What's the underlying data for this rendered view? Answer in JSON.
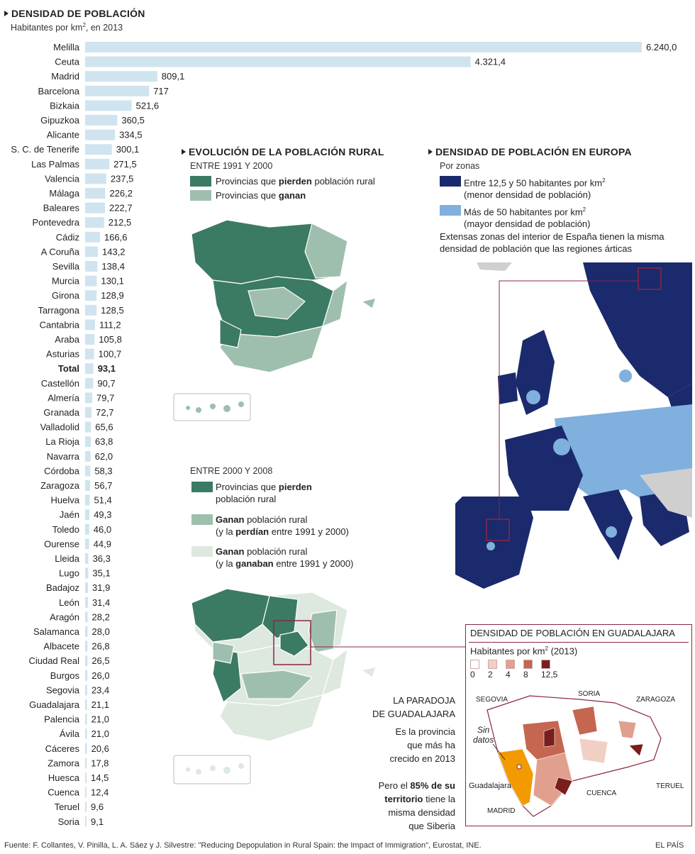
{
  "colors": {
    "bar": "#cfe4ee",
    "lose": "#3b7a63",
    "gain": "#9fbfae",
    "gain_prev": "#dde8df",
    "eu_low": "#1a2a6c",
    "eu_high": "#7fb0de",
    "accent": "#8b2740",
    "guada": "#f29a00",
    "guada_scale": [
      "#ffffff",
      "#f2cfc4",
      "#e1a08e",
      "#c56650",
      "#7a1d1d"
    ]
  },
  "chart_data": {
    "type": "bar",
    "orientation": "horizontal",
    "title": "DENSIDAD DE POBLACIÓN",
    "subtitle_pre": "Habitantes por km",
    "subtitle_sup": "2",
    "subtitle_post": ", en 2013",
    "highlight": "Total",
    "categories": [
      "Melilla",
      "Ceuta",
      "Madrid",
      "Barcelona",
      "Bizkaia",
      "Gipuzkoa",
      "Alicante",
      "S. C. de Tenerife",
      "Las Palmas",
      "Valencia",
      "Málaga",
      "Baleares",
      "Pontevedra",
      "Cádiz",
      "A Coruña",
      "Sevilla",
      "Murcia",
      "Girona",
      "Tarragona",
      "Cantabria",
      "Araba",
      "Asturias",
      "Total",
      "Castellón",
      "Almería",
      "Granada",
      "Valladolid",
      "La Rioja",
      "Navarra",
      "Córdoba",
      "Zaragoza",
      "Huelva",
      "Jaén",
      "Toledo",
      "Ourense",
      "Lleida",
      "Lugo",
      "Badajoz",
      "León",
      "Aragón",
      "Salamanca",
      "Albacete",
      "Ciudad Real",
      "Burgos",
      "Segovia",
      "Guadalajara",
      "Palencia",
      "Ávila",
      "Cáceres",
      "Zamora",
      "Huesca",
      "Cuenca",
      "Teruel",
      "Soria"
    ],
    "values": [
      6240.0,
      4321.4,
      809.1,
      717,
      521.6,
      360.5,
      334.5,
      300.1,
      271.5,
      237.5,
      226.2,
      222.7,
      212.5,
      166.6,
      143.2,
      138.4,
      130.1,
      128.9,
      128.5,
      111.2,
      105.8,
      100.7,
      93.1,
      90.7,
      79.7,
      72.7,
      65.6,
      63.8,
      62.0,
      58.3,
      56.7,
      51.4,
      49.3,
      46.0,
      44.9,
      36.3,
      35.1,
      31.9,
      31.4,
      28.2,
      28.0,
      26.8,
      26.5,
      26.0,
      23.4,
      21.1,
      21.0,
      21.0,
      20.6,
      17.8,
      14.5,
      12.4,
      9.6,
      9.1
    ],
    "value_labels": [
      "6.240,0",
      "4.321,4",
      "809,1",
      "717",
      "521,6",
      "360,5",
      "334,5",
      "300,1",
      "271,5",
      "237,5",
      "226,2",
      "222,7",
      "212,5",
      "166,6",
      "143,2",
      "138,4",
      "130,1",
      "128,9",
      "128,5",
      "111,2",
      "105,8",
      "100,7",
      "93,1",
      "90,7",
      "79,7",
      "72,7",
      "65,6",
      "63,8",
      "62,0",
      "58,3",
      "56,7",
      "51,4",
      "49,3",
      "46,0",
      "44,9",
      "36,3",
      "35,1",
      "31,9",
      "31,4",
      "28,2",
      "28,0",
      "26,8",
      "26,5",
      "26,0",
      "23,4",
      "21,1",
      "21,0",
      "21,0",
      "20,6",
      "17,8",
      "14,5",
      "12,4",
      "9,6",
      "9,1"
    ],
    "xlim": [
      0,
      6240
    ]
  },
  "rural": {
    "title": "EVOLUCIÓN DE LA POBLACIÓN RURAL",
    "period1": "ENTRE 1991 Y 2000",
    "p1_lose_pre": "Provincias que ",
    "p1_lose_bold": "pierden",
    "p1_lose_post": " población rural",
    "p1_gain_pre": "Provincias que ",
    "p1_gain_bold": "ganan",
    "period2": "ENTRE 2000 Y 2008",
    "p2_lose_pre": "Provincias que ",
    "p2_lose_bold": "pierden",
    "p2_lose_line2": "población rural",
    "p2_gain_bold": "Ganan",
    "p2_gain_post": " población rural",
    "p2_gain_l2_pre": "(y la ",
    "p2_gain_l2_bold": "perdían",
    "p2_gain_l2_post": " entre 1991 y 2000)",
    "p2_gain2_bold": "Ganan",
    "p2_gain2_post": " población rural",
    "p2_gain2_l2_pre": "(y la ",
    "p2_gain2_l2_bold": "ganaban",
    "p2_gain2_l2_post": " entre 1991 y 2000)"
  },
  "europe": {
    "title": "DENSIDAD DE POBLACIÓN EN EUROPA",
    "subtitle": "Por zonas",
    "low_l1_pre": "Entre 12,5 y 50 habitantes por km",
    "low_l1_sup": "2",
    "low_l2": "(menor densidad de población)",
    "high_l1_pre": "Más de 50 habitantes por km",
    "high_l1_sup": "2",
    "high_l2": "(mayor densidad de población)",
    "note_l1": "Extensas zonas del interior de España tienen la misma",
    "note_l2": "densidad de población que las regiones árticas"
  },
  "guadalajara": {
    "title": "DENSIDAD DE POBLACIÓN EN GUADALAJARA",
    "unit_pre": "Habitantes por km",
    "unit_sup": "2",
    "unit_post": " (2013)",
    "scale_labels": [
      "0",
      "2",
      "4",
      "8",
      "12,5"
    ],
    "neighbors": [
      "SEGOVIA",
      "SORIA",
      "ZARAGOZA",
      "TERUEL",
      "CUENCA",
      "MADRID"
    ],
    "city": "Guadalajara",
    "no_data_l1": "Sin",
    "no_data_l2": "datos"
  },
  "paradox": {
    "title_l1": "LA PARADOJA",
    "title_l2": "DE GUADALAJARA",
    "p1_l1": "Es la provincia",
    "p1_l2": "que más ha",
    "p1_l3": "crecido en 2013",
    "p2_l1_pre": "Pero el ",
    "p2_l1_bold": "85% de su",
    "p2_l2_bold": "territorio",
    "p2_l2_post": " tiene la",
    "p2_l3": "misma densidad",
    "p2_l4": "que Siberia"
  },
  "footer": {
    "source": "Fuente: F. Collantes, V. Pinilla, L. A. Sáez y J. Silvestre: \"Reducing Depopulation in Rural Spain: the Impact of Immigration\", Eurostat, INE.",
    "brand": "EL PAÍS"
  }
}
